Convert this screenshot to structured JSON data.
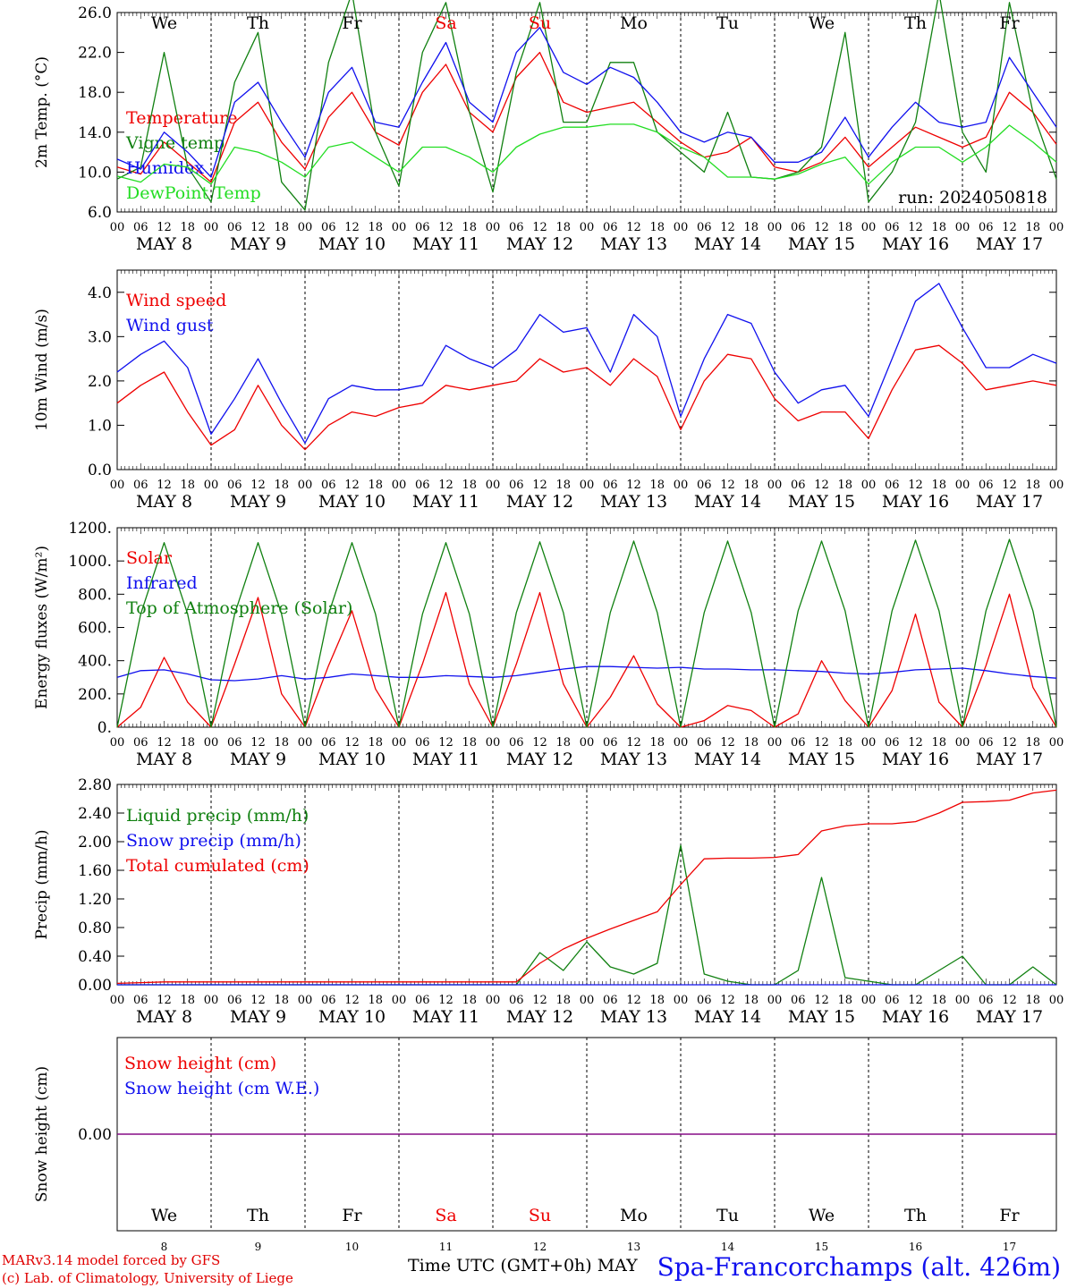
{
  "colors": {
    "red": "#ee0000",
    "blue": "#1010ee",
    "green": "#108010",
    "lightgreen": "#22dd22",
    "purple": "#800080",
    "axis": "#000000"
  },
  "day_names": [
    "We",
    "Th",
    "Fr",
    "Sa",
    "Su",
    "Mo",
    "Tu",
    "We",
    "Th",
    "Fr"
  ],
  "day_name_colors": [
    "black",
    "black",
    "black",
    "red",
    "red",
    "black",
    "black",
    "black",
    "black",
    "black"
  ],
  "date_labels": [
    "MAY  8",
    "MAY  9",
    "MAY 10",
    "MAY 11",
    "MAY 12",
    "MAY 13",
    "MAY 14",
    "MAY 15",
    "MAY 16",
    "MAY 17"
  ],
  "hour_ticks": [
    "00",
    "06",
    "12",
    "18"
  ],
  "final_hour_tick": "00",
  "bottom_day_numbers": [
    "8",
    "9",
    "10",
    "11",
    "12",
    "13",
    "14",
    "15",
    "16",
    "17"
  ],
  "run_label": "run: 2024050818",
  "x_axis_title": "Time UTC (GMT+0h) MAY",
  "station": "Spa-Francorchamps (alt. 426m)",
  "credits": [
    "MARv3.14 model forced by GFS",
    "(c) Lab. of Climatology, University of Liege"
  ],
  "chart_data": [
    {
      "type": "line",
      "ylabel": "2m Temp. (°C)",
      "ylim": [
        6,
        26
      ],
      "yticks": [
        "6.0",
        "10.0",
        "14.0",
        "18.0",
        "22.0",
        "26.0"
      ],
      "x": [
        0,
        6,
        12,
        18,
        24,
        30,
        36,
        42,
        48,
        54,
        60,
        66,
        72,
        78,
        84,
        90,
        96,
        102,
        108,
        114,
        120,
        126,
        132,
        138,
        144,
        150,
        156,
        162,
        168,
        174,
        180,
        186,
        192,
        198,
        204,
        210,
        216,
        222,
        228,
        234,
        240
      ],
      "x_unit": "hours since 2024-05-08 00 UTC",
      "series": [
        {
          "name": "Temperature",
          "color": "red",
          "values": [
            10.5,
            9.8,
            13,
            11,
            9,
            15,
            17,
            13,
            10.3,
            15.5,
            18,
            14,
            12.7,
            18,
            20.8,
            16,
            14,
            19.5,
            22,
            17,
            16,
            16.5,
            17,
            15,
            13,
            11.5,
            12,
            13.5,
            10.5,
            10,
            11,
            13.5,
            10.5,
            12.5,
            14.5,
            13.5,
            12.5,
            13.5,
            18,
            16,
            12.8
          ]
        },
        {
          "name": "Vigne temp",
          "color": "green",
          "values": [
            9.3,
            10.5,
            22,
            10.5,
            7,
            19,
            24,
            9,
            6.2,
            21,
            28,
            14,
            8.6,
            22,
            27,
            16,
            8,
            20,
            27,
            15,
            15,
            21,
            21,
            14,
            12,
            10,
            16,
            9.5,
            9.3,
            10,
            12.5,
            24,
            7,
            10,
            15,
            28,
            14,
            10,
            27,
            16,
            9.3
          ]
        },
        {
          "name": "Humidex",
          "color": "blue",
          "values": [
            11.3,
            10.3,
            14,
            12,
            9.5,
            17,
            19,
            15,
            11.5,
            18,
            20.5,
            15,
            14.5,
            19,
            23,
            17,
            15,
            22,
            24.5,
            20,
            18.8,
            20.5,
            19.5,
            17,
            14,
            13,
            14,
            13.5,
            11,
            11,
            12,
            15.5,
            11.5,
            14.5,
            17,
            15,
            14.5,
            15,
            21.5,
            18,
            14.5
          ]
        },
        {
          "name": "DewPoint Temp",
          "color": "lightgreen",
          "values": [
            9.6,
            9,
            10.8,
            10.5,
            8.8,
            12.5,
            12,
            11,
            9.5,
            12.5,
            13,
            11.5,
            10,
            12.5,
            12.5,
            11.5,
            10,
            12.5,
            13.8,
            14.5,
            14.5,
            14.8,
            14.8,
            14,
            12.5,
            11.5,
            9.5,
            9.5,
            9.3,
            9.8,
            10.8,
            11.5,
            8.8,
            11,
            12.5,
            12.5,
            11,
            12.5,
            14.7,
            13,
            11
          ]
        }
      ]
    },
    {
      "type": "line",
      "ylabel": "10m Wind (m/s)",
      "ylim": [
        0,
        4.5
      ],
      "yticks": [
        "0.0",
        "1.0",
        "2.0",
        "3.0",
        "4.0"
      ],
      "x": [
        0,
        6,
        12,
        18,
        24,
        30,
        36,
        42,
        48,
        54,
        60,
        66,
        72,
        78,
        84,
        90,
        96,
        102,
        108,
        114,
        120,
        126,
        132,
        138,
        144,
        150,
        156,
        162,
        168,
        174,
        180,
        186,
        192,
        198,
        204,
        210,
        216,
        222,
        228,
        234,
        240
      ],
      "x_unit": "hours since 2024-05-08 00 UTC",
      "series": [
        {
          "name": "Wind speed",
          "color": "red",
          "values": [
            1.5,
            1.9,
            2.2,
            1.3,
            0.55,
            0.9,
            1.9,
            1.0,
            0.45,
            1.0,
            1.3,
            1.2,
            1.4,
            1.5,
            1.9,
            1.8,
            1.9,
            2.0,
            2.5,
            2.2,
            2.3,
            1.9,
            2.5,
            2.1,
            0.9,
            2.0,
            2.6,
            2.5,
            1.6,
            1.1,
            1.3,
            1.3,
            0.7,
            1.8,
            2.7,
            2.8,
            2.4,
            1.8,
            1.9,
            2.0,
            1.9
          ]
        },
        {
          "name": "Wind gust",
          "color": "blue",
          "values": [
            2.2,
            2.6,
            2.9,
            2.3,
            0.8,
            1.6,
            2.5,
            1.5,
            0.6,
            1.6,
            1.9,
            1.8,
            1.8,
            1.9,
            2.8,
            2.5,
            2.3,
            2.7,
            3.5,
            3.1,
            3.2,
            2.2,
            3.5,
            3.0,
            1.2,
            2.5,
            3.5,
            3.3,
            2.2,
            1.5,
            1.8,
            1.9,
            1.2,
            2.5,
            3.8,
            4.2,
            3.2,
            2.3,
            2.3,
            2.6,
            2.4
          ]
        }
      ]
    },
    {
      "type": "line",
      "ylabel": "Energy fluxes (W/m²)",
      "ylim": [
        0,
        1200
      ],
      "yticks": [
        "0.",
        "200.",
        "400.",
        "600.",
        "800.",
        "1000.",
        "1200."
      ],
      "x": [
        0,
        6,
        12,
        18,
        24,
        30,
        36,
        42,
        48,
        54,
        60,
        66,
        72,
        78,
        84,
        90,
        96,
        102,
        108,
        114,
        120,
        126,
        132,
        138,
        144,
        150,
        156,
        162,
        168,
        174,
        180,
        186,
        192,
        198,
        204,
        210,
        216,
        222,
        228,
        234,
        240
      ],
      "x_unit": "hours since 2024-05-08 00 UTC",
      "series": [
        {
          "name": "Solar",
          "color": "red",
          "values": [
            0,
            120,
            420,
            150,
            0,
            380,
            780,
            200,
            0,
            370,
            700,
            230,
            0,
            380,
            810,
            260,
            0,
            380,
            810,
            260,
            0,
            180,
            430,
            140,
            0,
            40,
            130,
            100,
            0,
            80,
            400,
            160,
            0,
            220,
            680,
            150,
            0,
            370,
            800,
            240,
            0
          ]
        },
        {
          "name": "Infrared",
          "color": "blue",
          "values": [
            300,
            340,
            345,
            320,
            285,
            280,
            290,
            310,
            290,
            300,
            320,
            310,
            300,
            300,
            310,
            305,
            300,
            310,
            330,
            350,
            365,
            365,
            360,
            355,
            360,
            350,
            350,
            345,
            345,
            340,
            335,
            325,
            320,
            330,
            345,
            350,
            355,
            340,
            320,
            305,
            295
          ]
        },
        {
          "name": "Top of Atmosphere (Solar)",
          "color": "green",
          "values": [
            0,
            680,
            1110,
            680,
            0,
            680,
            1110,
            680,
            0,
            680,
            1110,
            680,
            0,
            680,
            1110,
            680,
            0,
            690,
            1115,
            690,
            0,
            690,
            1120,
            690,
            0,
            690,
            1120,
            690,
            0,
            700,
            1120,
            700,
            0,
            700,
            1125,
            700,
            0,
            700,
            1130,
            700,
            0
          ]
        }
      ]
    },
    {
      "type": "line",
      "ylabel": "Precip (mm/h)",
      "ylim": [
        0,
        2.8
      ],
      "yticks": [
        "0.00",
        "0.40",
        "0.80",
        "1.20",
        "1.60",
        "2.00",
        "2.40",
        "2.80"
      ],
      "x": [
        0,
        6,
        12,
        18,
        24,
        30,
        36,
        42,
        48,
        54,
        60,
        66,
        72,
        78,
        84,
        90,
        96,
        102,
        108,
        114,
        120,
        126,
        132,
        138,
        144,
        150,
        156,
        162,
        168,
        174,
        180,
        186,
        192,
        198,
        204,
        210,
        216,
        222,
        228,
        234,
        240
      ],
      "x_unit": "hours since 2024-05-08 00 UTC",
      "series": [
        {
          "name": "Liquid precip (mm/h)",
          "color": "green",
          "values": [
            0,
            0,
            0,
            0,
            0,
            0,
            0,
            0,
            0,
            0,
            0,
            0,
            0,
            0,
            0,
            0,
            0,
            0,
            0.45,
            0.2,
            0.6,
            0.25,
            0.15,
            0.3,
            1.95,
            0.15,
            0.05,
            0,
            0,
            0.2,
            1.5,
            0.1,
            0.05,
            0,
            0,
            0.2,
            0.4,
            0,
            0,
            0.25,
            0
          ]
        },
        {
          "name": "Snow precip (mm/h)",
          "color": "blue",
          "values": [
            0,
            0,
            0,
            0,
            0,
            0,
            0,
            0,
            0,
            0,
            0,
            0,
            0,
            0,
            0,
            0,
            0,
            0,
            0,
            0,
            0,
            0,
            0,
            0,
            0,
            0,
            0,
            0,
            0,
            0,
            0,
            0,
            0,
            0,
            0,
            0,
            0,
            0,
            0,
            0,
            0
          ]
        },
        {
          "name": "Total cumulated (cm)",
          "color": "red",
          "values": [
            0.02,
            0.03,
            0.04,
            0.04,
            0.04,
            0.04,
            0.04,
            0.04,
            0.04,
            0.04,
            0.04,
            0.04,
            0.04,
            0.04,
            0.04,
            0.04,
            0.04,
            0.04,
            0.3,
            0.5,
            0.65,
            0.78,
            0.9,
            1.02,
            1.4,
            1.76,
            1.77,
            1.77,
            1.78,
            1.82,
            2.15,
            2.22,
            2.25,
            2.25,
            2.28,
            2.4,
            2.55,
            2.56,
            2.58,
            2.68,
            2.72
          ]
        }
      ]
    },
    {
      "type": "line",
      "ylabel": "Snow height (cm)",
      "ylim": [
        -1,
        1
      ],
      "yticks": [
        "0.00"
      ],
      "x": [
        0,
        240
      ],
      "x_unit": "hours since 2024-05-08 00 UTC",
      "series": [
        {
          "name": "Snow height (cm)",
          "color": "red",
          "values": [
            0,
            0
          ]
        },
        {
          "name": "Snow height (cm W.E.)",
          "color": "blue",
          "values": [
            0,
            0
          ]
        }
      ]
    }
  ]
}
